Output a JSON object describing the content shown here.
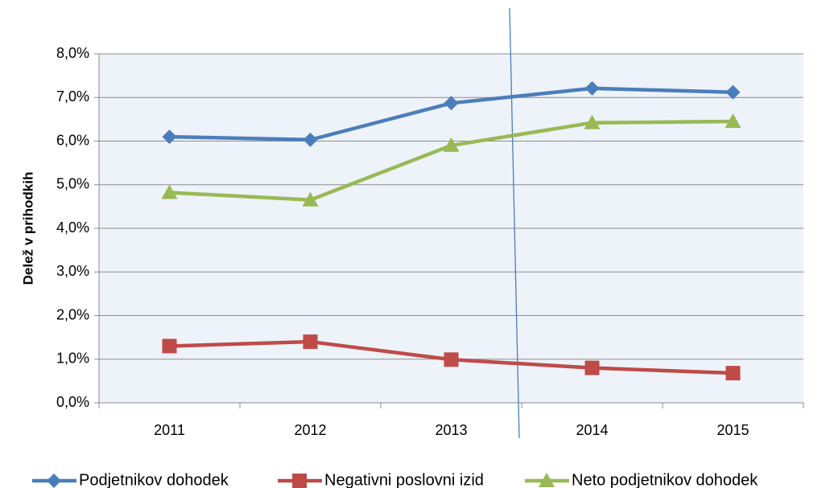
{
  "chart_data": {
    "type": "line",
    "y_axis_label": "Delež v prihodkih",
    "categories": [
      "2011",
      "2012",
      "2013",
      "2014",
      "2015"
    ],
    "series": [
      {
        "name": "Podjetnikov dohodek",
        "color": "#4a7ebb",
        "marker": "diamond",
        "values": [
          6.1,
          6.03,
          6.87,
          7.21,
          7.12
        ]
      },
      {
        "name": "Negativni poslovni izid",
        "color": "#be4b48",
        "marker": "square",
        "values": [
          1.3,
          1.4,
          0.99,
          0.8,
          0.68
        ]
      },
      {
        "name": "Neto podjetnikov dohodek",
        "color": "#98b954",
        "marker": "triangle",
        "values": [
          4.82,
          4.65,
          5.9,
          6.42,
          6.45
        ]
      }
    ],
    "ylim": [
      0,
      8
    ],
    "yticks": [
      {
        "value": 0,
        "label": "0,0%"
      },
      {
        "value": 1,
        "label": "1,0%"
      },
      {
        "value": 2,
        "label": "2,0%"
      },
      {
        "value": 3,
        "label": "3,0%"
      },
      {
        "value": 4,
        "label": "4,0%"
      },
      {
        "value": 5,
        "label": "5,0%"
      },
      {
        "value": 6,
        "label": "6,0%"
      },
      {
        "value": 7,
        "label": "7,0%"
      },
      {
        "value": 8,
        "label": "8,0%"
      }
    ],
    "grid": true,
    "legend": "bottom"
  }
}
